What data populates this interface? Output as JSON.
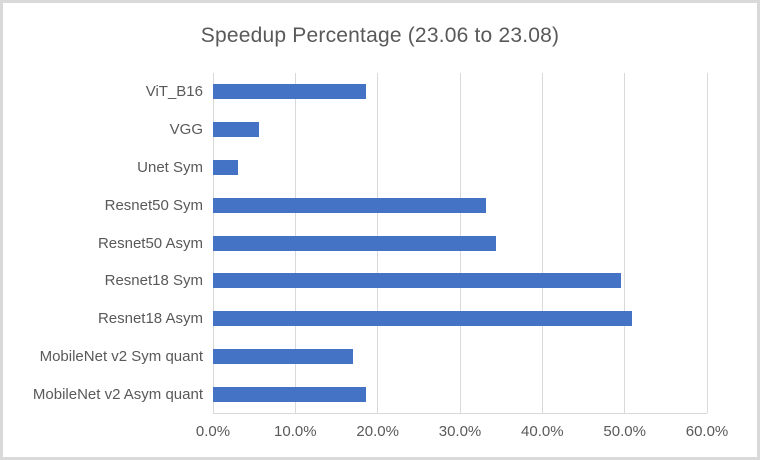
{
  "chart_data": {
    "type": "bar",
    "orientation": "horizontal",
    "title": "Speedup Percentage (23.06 to 23.08)",
    "categories": [
      "ViT_B16",
      "VGG",
      "Unet Sym",
      "Resnet50 Sym",
      "Resnet50 Asym",
      "Resnet18 Sym",
      "Resnet18 Asym",
      "MobileNet v2 Sym quant",
      "MobileNet v2 Asym quant"
    ],
    "values": [
      18.6,
      5.6,
      3.0,
      33.2,
      34.4,
      49.6,
      50.9,
      17.0,
      18.6
    ],
    "unit": "%",
    "xlim": [
      0,
      60
    ],
    "x_tick_values": [
      0,
      10,
      20,
      30,
      40,
      50,
      60
    ],
    "x_tick_labels": [
      "0.0%",
      "10.0%",
      "20.0%",
      "30.0%",
      "40.0%",
      "50.0%",
      "60.0%"
    ],
    "grid": "vertical-only",
    "legend": "none",
    "bar_color": "#4472c4",
    "text_color": "#595959",
    "gridline_color": "#d9d9d9",
    "frame_border_color": "#d9d9d9",
    "background_color": "#ffffff"
  }
}
